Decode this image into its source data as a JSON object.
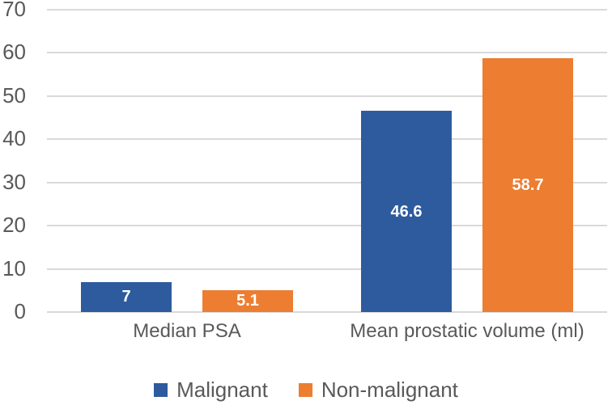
{
  "figure": {
    "background": "#ffffff",
    "gridline_color": "#d9d9d9",
    "axis_text_color": "#595959",
    "value_label_color": "#ffffff"
  },
  "chart_data": {
    "type": "bar",
    "title": "",
    "xlabel": "",
    "ylabel": "",
    "categories": [
      "Median PSA",
      "Mean prostatic volume (ml)"
    ],
    "series": [
      {
        "name": "Malignant",
        "color": "#2e5b9e",
        "values": [
          7,
          46.6
        ]
      },
      {
        "name": "Non-malignant",
        "color": "#ed7d31",
        "values": [
          5.1,
          58.7
        ]
      }
    ],
    "data_labels": true,
    "ylim": [
      0,
      70
    ],
    "yticks": [
      0,
      10,
      20,
      30,
      40,
      50,
      60,
      70
    ],
    "grid": true,
    "legend_position": "bottom"
  }
}
